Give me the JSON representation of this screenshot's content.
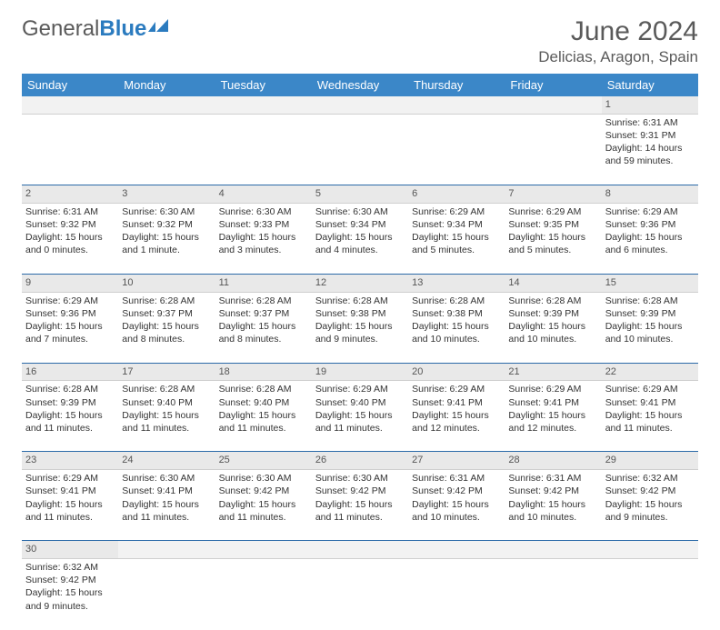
{
  "header": {
    "logo_general": "General",
    "logo_blue": "Blue",
    "month_title": "June 2024",
    "location": "Delicias, Aragon, Spain"
  },
  "colors": {
    "header_bg": "#3b87c8",
    "header_text": "#ffffff",
    "daynum_bg": "#e9e9e9",
    "row_border": "#2b6aa8",
    "body_text": "#333333",
    "title_text": "#5a5a5a"
  },
  "weekdays": [
    "Sunday",
    "Monday",
    "Tuesday",
    "Wednesday",
    "Thursday",
    "Friday",
    "Saturday"
  ],
  "weeks": [
    {
      "nums": [
        "",
        "",
        "",
        "",
        "",
        "",
        "1"
      ],
      "cells": [
        null,
        null,
        null,
        null,
        null,
        null,
        {
          "sunrise": "Sunrise: 6:31 AM",
          "sunset": "Sunset: 9:31 PM",
          "dl1": "Daylight: 14 hours",
          "dl2": "and 59 minutes."
        }
      ]
    },
    {
      "nums": [
        "2",
        "3",
        "4",
        "5",
        "6",
        "7",
        "8"
      ],
      "cells": [
        {
          "sunrise": "Sunrise: 6:31 AM",
          "sunset": "Sunset: 9:32 PM",
          "dl1": "Daylight: 15 hours",
          "dl2": "and 0 minutes."
        },
        {
          "sunrise": "Sunrise: 6:30 AM",
          "sunset": "Sunset: 9:32 PM",
          "dl1": "Daylight: 15 hours",
          "dl2": "and 1 minute."
        },
        {
          "sunrise": "Sunrise: 6:30 AM",
          "sunset": "Sunset: 9:33 PM",
          "dl1": "Daylight: 15 hours",
          "dl2": "and 3 minutes."
        },
        {
          "sunrise": "Sunrise: 6:30 AM",
          "sunset": "Sunset: 9:34 PM",
          "dl1": "Daylight: 15 hours",
          "dl2": "and 4 minutes."
        },
        {
          "sunrise": "Sunrise: 6:29 AM",
          "sunset": "Sunset: 9:34 PM",
          "dl1": "Daylight: 15 hours",
          "dl2": "and 5 minutes."
        },
        {
          "sunrise": "Sunrise: 6:29 AM",
          "sunset": "Sunset: 9:35 PM",
          "dl1": "Daylight: 15 hours",
          "dl2": "and 5 minutes."
        },
        {
          "sunrise": "Sunrise: 6:29 AM",
          "sunset": "Sunset: 9:36 PM",
          "dl1": "Daylight: 15 hours",
          "dl2": "and 6 minutes."
        }
      ]
    },
    {
      "nums": [
        "9",
        "10",
        "11",
        "12",
        "13",
        "14",
        "15"
      ],
      "cells": [
        {
          "sunrise": "Sunrise: 6:29 AM",
          "sunset": "Sunset: 9:36 PM",
          "dl1": "Daylight: 15 hours",
          "dl2": "and 7 minutes."
        },
        {
          "sunrise": "Sunrise: 6:28 AM",
          "sunset": "Sunset: 9:37 PM",
          "dl1": "Daylight: 15 hours",
          "dl2": "and 8 minutes."
        },
        {
          "sunrise": "Sunrise: 6:28 AM",
          "sunset": "Sunset: 9:37 PM",
          "dl1": "Daylight: 15 hours",
          "dl2": "and 8 minutes."
        },
        {
          "sunrise": "Sunrise: 6:28 AM",
          "sunset": "Sunset: 9:38 PM",
          "dl1": "Daylight: 15 hours",
          "dl2": "and 9 minutes."
        },
        {
          "sunrise": "Sunrise: 6:28 AM",
          "sunset": "Sunset: 9:38 PM",
          "dl1": "Daylight: 15 hours",
          "dl2": "and 10 minutes."
        },
        {
          "sunrise": "Sunrise: 6:28 AM",
          "sunset": "Sunset: 9:39 PM",
          "dl1": "Daylight: 15 hours",
          "dl2": "and 10 minutes."
        },
        {
          "sunrise": "Sunrise: 6:28 AM",
          "sunset": "Sunset: 9:39 PM",
          "dl1": "Daylight: 15 hours",
          "dl2": "and 10 minutes."
        }
      ]
    },
    {
      "nums": [
        "16",
        "17",
        "18",
        "19",
        "20",
        "21",
        "22"
      ],
      "cells": [
        {
          "sunrise": "Sunrise: 6:28 AM",
          "sunset": "Sunset: 9:39 PM",
          "dl1": "Daylight: 15 hours",
          "dl2": "and 11 minutes."
        },
        {
          "sunrise": "Sunrise: 6:28 AM",
          "sunset": "Sunset: 9:40 PM",
          "dl1": "Daylight: 15 hours",
          "dl2": "and 11 minutes."
        },
        {
          "sunrise": "Sunrise: 6:28 AM",
          "sunset": "Sunset: 9:40 PM",
          "dl1": "Daylight: 15 hours",
          "dl2": "and 11 minutes."
        },
        {
          "sunrise": "Sunrise: 6:29 AM",
          "sunset": "Sunset: 9:40 PM",
          "dl1": "Daylight: 15 hours",
          "dl2": "and 11 minutes."
        },
        {
          "sunrise": "Sunrise: 6:29 AM",
          "sunset": "Sunset: 9:41 PM",
          "dl1": "Daylight: 15 hours",
          "dl2": "and 12 minutes."
        },
        {
          "sunrise": "Sunrise: 6:29 AM",
          "sunset": "Sunset: 9:41 PM",
          "dl1": "Daylight: 15 hours",
          "dl2": "and 12 minutes."
        },
        {
          "sunrise": "Sunrise: 6:29 AM",
          "sunset": "Sunset: 9:41 PM",
          "dl1": "Daylight: 15 hours",
          "dl2": "and 11 minutes."
        }
      ]
    },
    {
      "nums": [
        "23",
        "24",
        "25",
        "26",
        "27",
        "28",
        "29"
      ],
      "cells": [
        {
          "sunrise": "Sunrise: 6:29 AM",
          "sunset": "Sunset: 9:41 PM",
          "dl1": "Daylight: 15 hours",
          "dl2": "and 11 minutes."
        },
        {
          "sunrise": "Sunrise: 6:30 AM",
          "sunset": "Sunset: 9:41 PM",
          "dl1": "Daylight: 15 hours",
          "dl2": "and 11 minutes."
        },
        {
          "sunrise": "Sunrise: 6:30 AM",
          "sunset": "Sunset: 9:42 PM",
          "dl1": "Daylight: 15 hours",
          "dl2": "and 11 minutes."
        },
        {
          "sunrise": "Sunrise: 6:30 AM",
          "sunset": "Sunset: 9:42 PM",
          "dl1": "Daylight: 15 hours",
          "dl2": "and 11 minutes."
        },
        {
          "sunrise": "Sunrise: 6:31 AM",
          "sunset": "Sunset: 9:42 PM",
          "dl1": "Daylight: 15 hours",
          "dl2": "and 10 minutes."
        },
        {
          "sunrise": "Sunrise: 6:31 AM",
          "sunset": "Sunset: 9:42 PM",
          "dl1": "Daylight: 15 hours",
          "dl2": "and 10 minutes."
        },
        {
          "sunrise": "Sunrise: 6:32 AM",
          "sunset": "Sunset: 9:42 PM",
          "dl1": "Daylight: 15 hours",
          "dl2": "and 9 minutes."
        }
      ]
    },
    {
      "nums": [
        "30",
        "",
        "",
        "",
        "",
        "",
        ""
      ],
      "cells": [
        {
          "sunrise": "Sunrise: 6:32 AM",
          "sunset": "Sunset: 9:42 PM",
          "dl1": "Daylight: 15 hours",
          "dl2": "and 9 minutes."
        },
        null,
        null,
        null,
        null,
        null,
        null
      ]
    }
  ]
}
